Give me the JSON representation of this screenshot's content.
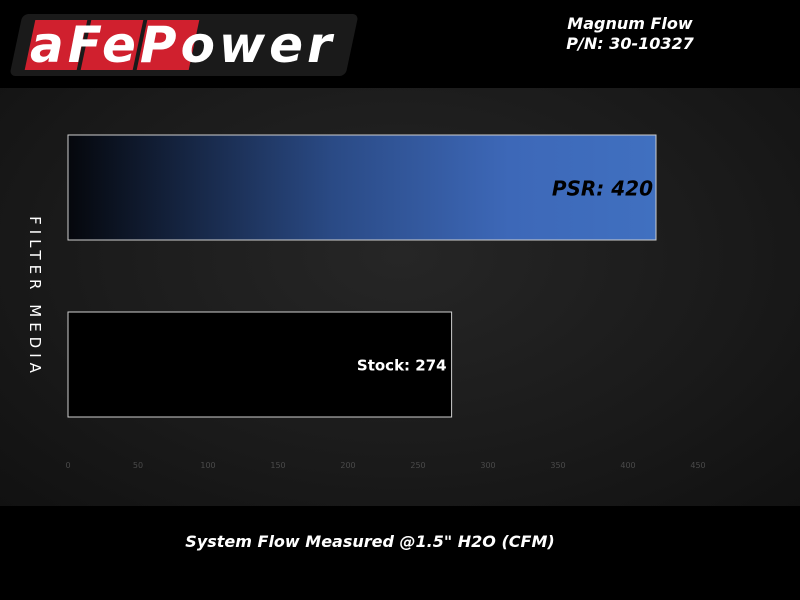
{
  "logo": {
    "text": "aFePower"
  },
  "header": {
    "title_line1": "Magnum Flow",
    "title_line2": "P/N: 30-10327"
  },
  "chart_data": {
    "type": "bar",
    "orientation": "horizontal",
    "categories": [
      "PSR",
      "Stock"
    ],
    "values": [
      420,
      274
    ],
    "data_labels": [
      "PSR: 420",
      "Stock: 274"
    ],
    "xlabel": "System Flow Measured @1.5\" H2O (CFM)",
    "ylabel": "FILTER MEDIA",
    "xlim": [
      0,
      450
    ],
    "xticks": [
      0,
      50,
      100,
      150,
      200,
      250,
      300,
      350,
      400,
      450
    ],
    "grid": false,
    "colors": {
      "PSR": "#3d68b8",
      "Stock": "#000000"
    }
  }
}
